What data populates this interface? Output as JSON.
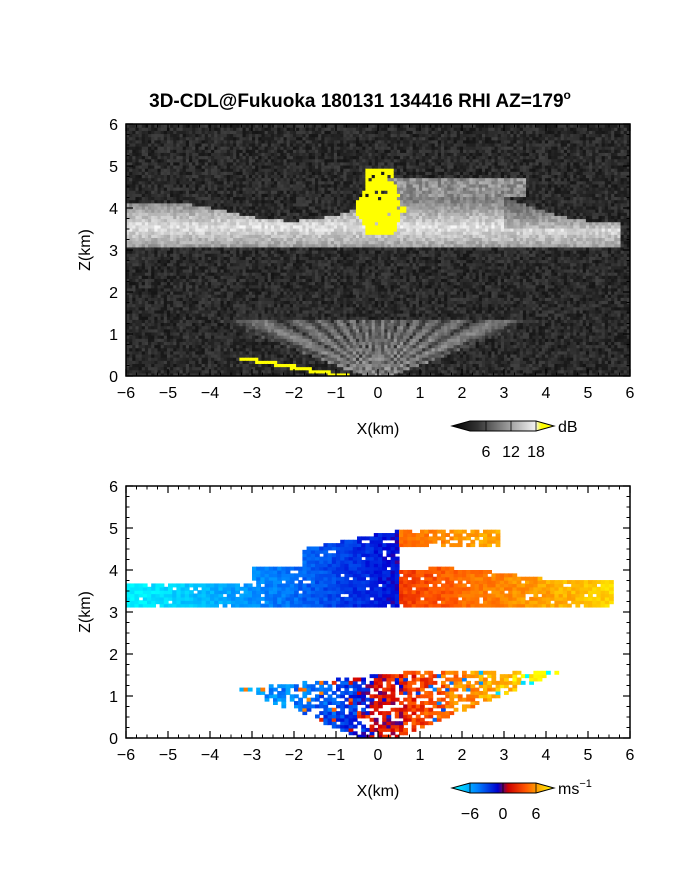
{
  "title_main": "3D-CDL@Fukuoka 180131 134416 RHI AZ=179",
  "title_degree": "o",
  "chart_data": [
    {
      "type": "heatmap",
      "field": "backscatter intensity",
      "xlabel": "X(km)",
      "ylabel": "Z(km)",
      "xlim": [
        -6,
        6
      ],
      "ylim": [
        0,
        6
      ],
      "xticks": [
        "-6",
        "-5",
        "-4",
        "-3",
        "-2",
        "-1",
        "0",
        "1",
        "2",
        "3",
        "4",
        "5",
        "6"
      ],
      "yticks": [
        "0",
        "1",
        "2",
        "3",
        "4",
        "5",
        "6"
      ],
      "colorbar": {
        "unit": "dB",
        "ticks": [
          "6",
          "12",
          "18"
        ],
        "range": [
          0,
          24
        ],
        "colormap": "grayscale-to-yellow"
      },
      "features": [
        {
          "name": "cloud-layer",
          "x_range": [
            -6,
            5.8
          ],
          "z_range": [
            3.0,
            4.6
          ]
        },
        {
          "name": "saturated-core",
          "x_range": [
            -0.5,
            0.6
          ],
          "z_range": [
            3.4,
            5.0
          ],
          "color": "#ffff00"
        },
        {
          "name": "near-field-fan",
          "x_range": [
            -3.5,
            3.0
          ],
          "z_range": [
            0.0,
            1.4
          ]
        },
        {
          "name": "saturated-ground-strip",
          "x_range": [
            -3.3,
            -0.7
          ],
          "z_range": [
            0.0,
            0.5
          ],
          "color": "#ffff00"
        }
      ]
    },
    {
      "type": "heatmap",
      "field": "radial velocity",
      "xlabel": "X(km)",
      "ylabel": "Z(km)",
      "xlim": [
        -6,
        6
      ],
      "ylim": [
        0,
        6
      ],
      "xticks": [
        "-6",
        "-5",
        "-4",
        "-3",
        "-2",
        "-1",
        "0",
        "1",
        "2",
        "3",
        "4",
        "5",
        "6"
      ],
      "yticks": [
        "0",
        "1",
        "2",
        "3",
        "4",
        "5",
        "6"
      ],
      "colorbar": {
        "unit": "ms",
        "unit_exponent": "−1",
        "ticks": [
          "−6",
          "0",
          "6"
        ],
        "range": [
          -8,
          8
        ],
        "colormap": "cyan-blue-red-yellow"
      },
      "features": [
        {
          "name": "approaching-layer",
          "x_range": [
            -6,
            0.5
          ],
          "z_range": [
            3.1,
            5.0
          ],
          "velocity": "negative"
        },
        {
          "name": "receding-layer",
          "x_range": [
            0.5,
            5.6
          ],
          "z_range": [
            3.1,
            5.0
          ],
          "velocity": "positive"
        },
        {
          "name": "near-field-fan",
          "x_range": [
            -3.4,
            2.6
          ],
          "z_range": [
            0.0,
            1.6
          ],
          "velocity": "mixed"
        }
      ]
    }
  ]
}
